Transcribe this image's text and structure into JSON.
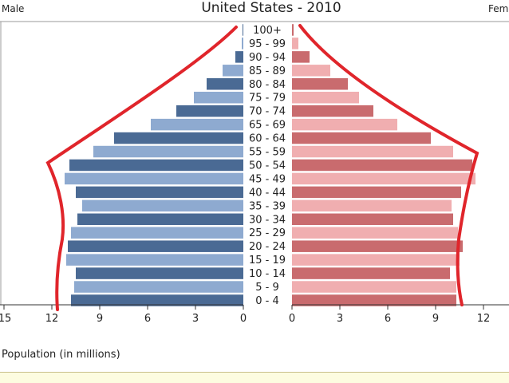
{
  "chart_data": {
    "type": "bar",
    "title": "United States - 2010",
    "left_label": "Male",
    "right_label": "Fem",
    "xlabel": "Population (in millions)",
    "xlim": [
      -15,
      15
    ],
    "x_ticks_left": [
      "15",
      "12",
      "9",
      "6",
      "3",
      "0"
    ],
    "x_ticks_right": [
      "0",
      "3",
      "6",
      "9",
      "12"
    ],
    "categories": [
      "100+",
      "95 - 99",
      "90 - 94",
      "85 - 89",
      "80 - 84",
      "75 - 79",
      "70 - 74",
      "65 - 69",
      "60 - 64",
      "55 - 59",
      "50 - 54",
      "45 - 49",
      "40 - 44",
      "35 - 39",
      "30 - 34",
      "25 - 29",
      "20 - 24",
      "15 - 19",
      "10 - 14",
      "5 - 9",
      "0 - 4"
    ],
    "series": [
      {
        "name": "Male",
        "values": [
          0.05,
          0.1,
          0.5,
          1.3,
          2.3,
          3.1,
          4.2,
          5.8,
          8.1,
          9.4,
          10.9,
          11.2,
          10.5,
          10.1,
          10.4,
          10.8,
          11.0,
          11.1,
          10.5,
          10.6,
          10.8
        ],
        "colors": [
          "#4a6a94",
          "#8eaad0"
        ]
      },
      {
        "name": "Female",
        "values": [
          0.1,
          0.4,
          1.1,
          2.4,
          3.5,
          4.2,
          5.1,
          6.6,
          8.7,
          10.1,
          11.3,
          11.5,
          10.6,
          10.0,
          10.1,
          10.4,
          10.7,
          10.5,
          9.9,
          10.3,
          10.3
        ],
        "colors": [
          "#c96b6e",
          "#f0aeb0"
        ]
      }
    ],
    "annotation": "hand-drawn red outline around the pyramid"
  }
}
